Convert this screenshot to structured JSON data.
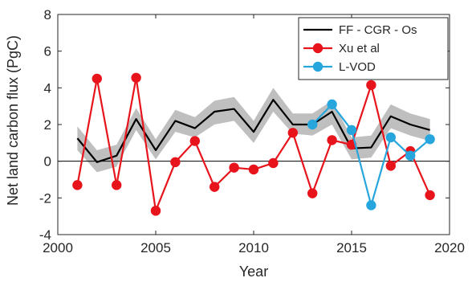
{
  "chart_data": {
    "type": "line",
    "xlabel": "Year",
    "ylabel": "Net land carbon flux (PgC)",
    "xlim": [
      2000,
      2020
    ],
    "ylim": [
      -4,
      8
    ],
    "xticks": [
      2000,
      2005,
      2010,
      2015,
      2020
    ],
    "yticks": [
      -4,
      -2,
      0,
      2,
      4,
      6,
      8
    ],
    "grid": false,
    "legend_position": "top-right",
    "reference_line": 0,
    "series": [
      {
        "name": "FF - CGR - Os",
        "color": "#000000",
        "marker": "none",
        "x": [
          2001,
          2002,
          2003,
          2004,
          2005,
          2006,
          2007,
          2008,
          2009,
          2010,
          2011,
          2012,
          2013,
          2014,
          2015,
          2016,
          2017,
          2018,
          2019
        ],
        "values": [
          1.25,
          -0.05,
          0.3,
          2.3,
          0.6,
          2.2,
          1.8,
          2.7,
          2.85,
          1.6,
          3.35,
          2.0,
          2.0,
          2.7,
          0.7,
          0.75,
          2.45,
          2.0,
          1.7
        ],
        "band_lower": [
          0.6,
          -0.6,
          -0.3,
          1.7,
          0.1,
          1.6,
          1.3,
          2.0,
          2.2,
          1.0,
          2.7,
          1.5,
          1.4,
          2.0,
          0.1,
          0.2,
          1.8,
          1.4,
          1.1
        ],
        "band_upper": [
          1.9,
          0.6,
          0.9,
          2.9,
          1.2,
          2.8,
          2.4,
          3.3,
          3.5,
          2.2,
          4.0,
          2.6,
          2.6,
          3.3,
          1.3,
          1.4,
          3.1,
          2.6,
          2.3
        ],
        "band_color": "#bfbfbf"
      },
      {
        "name": "Xu et al",
        "color": "#e8141c",
        "marker": "circle",
        "x": [
          2001,
          2002,
          2003,
          2004,
          2005,
          2006,
          2007,
          2008,
          2009,
          2010,
          2011,
          2012,
          2013,
          2014,
          2015,
          2016,
          2017,
          2018,
          2019
        ],
        "values": [
          -1.3,
          4.5,
          -1.3,
          4.55,
          -2.7,
          -0.05,
          1.1,
          -1.4,
          -0.35,
          -0.45,
          -0.1,
          1.55,
          -1.75,
          1.15,
          0.9,
          4.15,
          -0.25,
          0.55,
          -1.85
        ]
      },
      {
        "name": "L-VOD",
        "color": "#27a6de",
        "marker": "circle",
        "x": [
          2013,
          2014,
          2015,
          2016,
          2017,
          2018,
          2019
        ],
        "values": [
          2.0,
          3.1,
          1.7,
          -2.4,
          1.3,
          0.3,
          1.2
        ]
      }
    ]
  }
}
